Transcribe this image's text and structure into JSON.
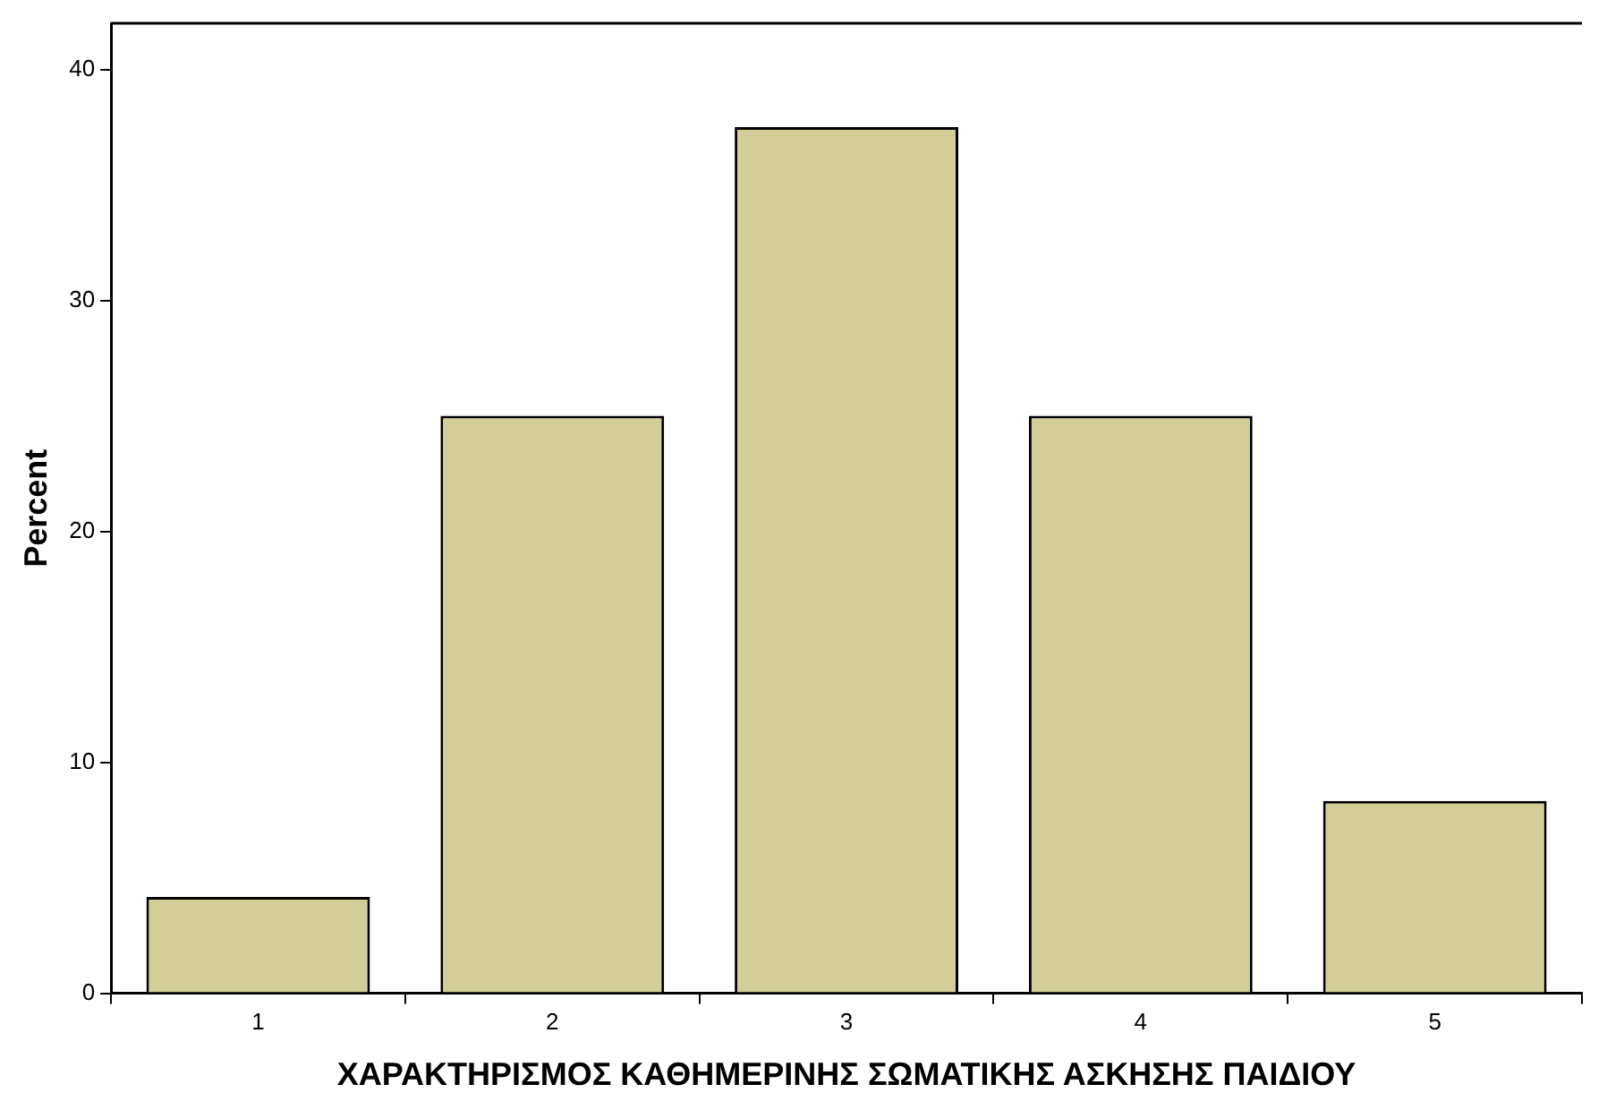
{
  "chart_data": {
    "type": "bar",
    "xlabel": "ΧΑΡΑΚΤΗΡΙΣΜΟΣ ΚΑΘΗΜΕΡΙΝΗΣ ΣΩΜΑΤΙΚΗΣ ΑΣΚΗΣΗΣ ΠΑΙΔΙΟΥ",
    "ylabel": "Percent",
    "categories": [
      "1",
      "2",
      "3",
      "4",
      "5"
    ],
    "values": [
      4.17,
      25,
      37.5,
      25,
      8.33
    ],
    "color": "#d3cd98",
    "ylim": [
      0,
      42
    ],
    "yticks": [
      0,
      10,
      20,
      30,
      40
    ],
    "grid": false,
    "legend": false
  }
}
